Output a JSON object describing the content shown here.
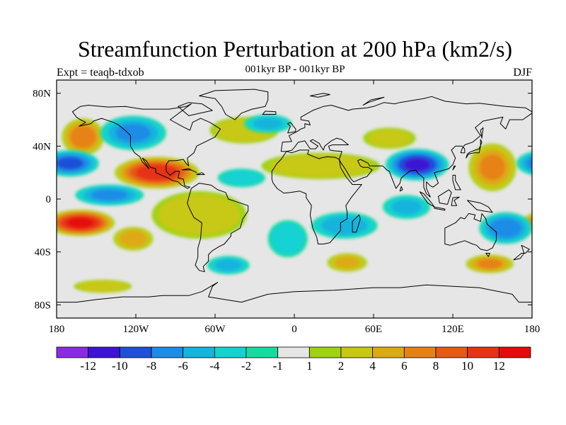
{
  "figure": {
    "title": "Streamfunction Perturbation at 200 hPa (km2/s)",
    "subtitle": "001kyr BP - 001kyr BP",
    "left_label": "Expt = teaqb-tdxob",
    "right_label": "DJF"
  },
  "map": {
    "projection": "cylindrical equidistant",
    "lon_range": [
      -180,
      180
    ],
    "lat_range": [
      -90,
      90
    ],
    "x_ticks": [
      {
        "lon": -180,
        "label": "180"
      },
      {
        "lon": -120,
        "label": "120W"
      },
      {
        "lon": -60,
        "label": "60W"
      },
      {
        "lon": 0,
        "label": "0"
      },
      {
        "lon": 60,
        "label": "60E"
      },
      {
        "lon": 120,
        "label": "120E"
      },
      {
        "lon": 180,
        "label": "180"
      }
    ],
    "y_ticks": [
      {
        "lat": 80,
        "label": "80N"
      },
      {
        "lat": 40,
        "label": "40N"
      },
      {
        "lat": 0,
        "label": "0"
      },
      {
        "lat": -40,
        "label": "40S"
      },
      {
        "lat": -80,
        "label": "80S"
      }
    ],
    "background_color": "#e6e6e6",
    "coastline_color": "#000000",
    "anomalies": [
      {
        "lon": -160,
        "lat": 47,
        "rx": 16,
        "ry": 14,
        "value": 7,
        "name": "n-pacific-high"
      },
      {
        "lon": -122,
        "lat": 50,
        "rx": 25,
        "ry": 13,
        "value": -6,
        "name": "w-canada-low"
      },
      {
        "lon": -104,
        "lat": 20,
        "rx": 32,
        "ry": 12,
        "value": 11,
        "name": "mexico-high"
      },
      {
        "lon": -170,
        "lat": 27,
        "rx": 22,
        "ry": 10,
        "value": -8,
        "name": "subtropical-pacific-low"
      },
      {
        "lon": -140,
        "lat": 3,
        "rx": 26,
        "ry": 8,
        "value": -6,
        "name": "equatorial-pacific-low"
      },
      {
        "lon": -162,
        "lat": -18,
        "rx": 26,
        "ry": 10,
        "value": 12,
        "name": "s-pacific-high"
      },
      {
        "lon": -122,
        "lat": -30,
        "rx": 15,
        "ry": 9,
        "value": 5,
        "name": "se-pacific-high"
      },
      {
        "lon": -72,
        "lat": -12,
        "rx": 36,
        "ry": 18,
        "value": 3,
        "name": "s-america-high"
      },
      {
        "lon": -38,
        "lat": 52,
        "rx": 26,
        "ry": 10,
        "value": 3,
        "name": "n-atlantic-high"
      },
      {
        "lon": -20,
        "lat": 57,
        "rx": 18,
        "ry": 7,
        "value": -4,
        "name": "iceland-low"
      },
      {
        "lon": 20,
        "lat": 25,
        "rx": 45,
        "ry": 10,
        "value": 3,
        "name": "sahara-high"
      },
      {
        "lon": -40,
        "lat": 16,
        "rx": 18,
        "ry": 7,
        "value": -3,
        "name": "tropical-atlantic-low"
      },
      {
        "lon": 38,
        "lat": -20,
        "rx": 25,
        "ry": 10,
        "value": -5,
        "name": "s-africa-low"
      },
      {
        "lon": 40,
        "lat": -48,
        "rx": 15,
        "ry": 7,
        "value": 4,
        "name": "s-indian-high"
      },
      {
        "lon": 85,
        "lat": -6,
        "rx": 18,
        "ry": 9,
        "value": -4,
        "name": "indian-ocean-low"
      },
      {
        "lon": 93,
        "lat": 26,
        "rx": 24,
        "ry": 12,
        "value": -10,
        "name": "tibet-low"
      },
      {
        "lon": 150,
        "lat": 24,
        "rx": 18,
        "ry": 18,
        "value": 6,
        "name": "w-pacific-high"
      },
      {
        "lon": 160,
        "lat": -22,
        "rx": 20,
        "ry": 12,
        "value": -7,
        "name": "sw-pacific-low"
      },
      {
        "lon": 148,
        "lat": -49,
        "rx": 18,
        "ry": 7,
        "value": 6,
        "name": "s-ocean-high"
      },
      {
        "lon": -50,
        "lat": -50,
        "rx": 16,
        "ry": 7,
        "value": -4,
        "name": "s-atlantic-low"
      },
      {
        "lon": -145,
        "lat": -66,
        "rx": 22,
        "ry": 5,
        "value": 3,
        "name": "ross-sea-high"
      },
      {
        "lon": 72,
        "lat": 46,
        "rx": 20,
        "ry": 8,
        "value": 2,
        "name": "central-asia-high"
      },
      {
        "lon": -5,
        "lat": -30,
        "rx": 15,
        "ry": 14,
        "value": -3,
        "name": "s-atlantic-mid-low"
      }
    ]
  },
  "colorbar": {
    "labels": [
      "-12",
      "-10",
      "-8",
      "-6",
      "-4",
      "-2",
      "-1",
      "1",
      "2",
      "4",
      "6",
      "8",
      "10",
      "12"
    ],
    "colors": [
      "#8a2be2",
      "#3c14d4",
      "#1e50d8",
      "#1e8ce6",
      "#14b4dc",
      "#14d2d2",
      "#14dca0",
      "#e6e6e6",
      "#a0d214",
      "#c8c814",
      "#dcaa14",
      "#e68214",
      "#e65a14",
      "#e63214",
      "#e60a0a"
    ],
    "levels": [
      -12,
      -10,
      -8,
      -6,
      -4,
      -2,
      -1,
      1,
      2,
      4,
      6,
      8,
      10,
      12
    ]
  }
}
